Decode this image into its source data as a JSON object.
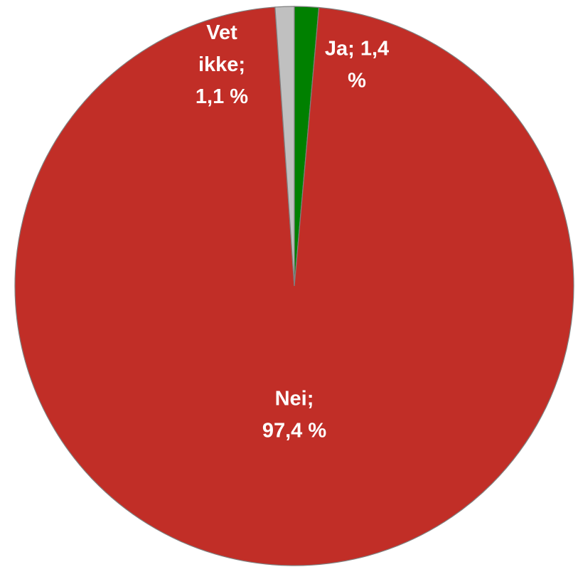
{
  "chart_data": {
    "type": "pie",
    "values": [
      1.4,
      97.4,
      1.1
    ],
    "value_labels": [
      "Ja; 1,4 %",
      "Nei; 97,4 %",
      "Vet ikke; 1,1 %"
    ],
    "colors": [
      "#008000",
      "#c12e27",
      "#c0c0c0"
    ]
  }
}
